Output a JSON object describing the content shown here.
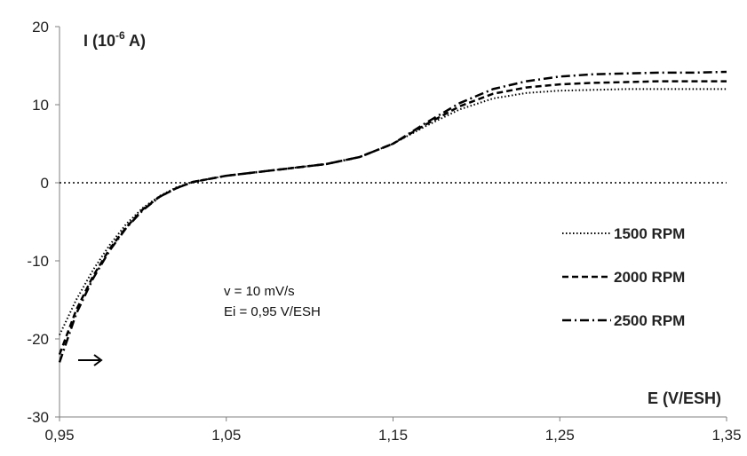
{
  "chart_data": {
    "type": "line",
    "title": "",
    "xlabel": "E (V/ESH)",
    "ylabel": "I (10",
    "ylabel_exponent": "-6",
    "ylabel_tail": " A)",
    "xlim": [
      0.95,
      1.35
    ],
    "ylim": [
      -30,
      20
    ],
    "x_ticks": [
      0.95,
      1.05,
      1.15,
      1.25,
      1.35
    ],
    "x_tick_labels": [
      "0,95",
      "1,05",
      "1,15",
      "1,25",
      "1,35"
    ],
    "y_ticks": [
      -30,
      -20,
      -10,
      0,
      10,
      20
    ],
    "y_tick_labels": [
      "-30",
      "-20",
      "-10",
      "0",
      "10",
      "20"
    ],
    "grid": false,
    "zero_line": true,
    "legend_position": "right",
    "annotations": [
      "v = 10 mV/s",
      "Ei = 0,95 V/ESH"
    ],
    "scan_direction_arrow": "right",
    "series": [
      {
        "name": "1500 RPM",
        "style": "dotted",
        "x": [
          0.95,
          0.96,
          0.97,
          0.98,
          0.99,
          1.0,
          1.01,
          1.02,
          1.03,
          1.04,
          1.05,
          1.07,
          1.09,
          1.11,
          1.13,
          1.15,
          1.17,
          1.19,
          1.21,
          1.23,
          1.25,
          1.27,
          1.29,
          1.31,
          1.33,
          1.35
        ],
        "values": [
          -19.5,
          -15.0,
          -11.2,
          -8.0,
          -5.3,
          -3.2,
          -1.7,
          -0.6,
          0.1,
          0.5,
          0.9,
          1.4,
          1.9,
          2.4,
          3.3,
          5.0,
          7.3,
          9.4,
          10.8,
          11.5,
          11.8,
          11.9,
          12.0,
          12.0,
          12.0,
          12.0
        ]
      },
      {
        "name": "2000 RPM",
        "style": "dashed",
        "x": [
          0.95,
          0.96,
          0.97,
          0.98,
          0.99,
          1.0,
          1.01,
          1.02,
          1.03,
          1.04,
          1.05,
          1.07,
          1.09,
          1.11,
          1.13,
          1.15,
          1.17,
          1.19,
          1.21,
          1.23,
          1.25,
          1.27,
          1.29,
          1.31,
          1.33,
          1.35
        ],
        "values": [
          -22.0,
          -16.3,
          -12.0,
          -8.5,
          -5.7,
          -3.4,
          -1.8,
          -0.7,
          0.1,
          0.5,
          0.9,
          1.4,
          1.9,
          2.4,
          3.3,
          5.0,
          7.5,
          9.8,
          11.4,
          12.2,
          12.6,
          12.8,
          12.9,
          13.0,
          13.0,
          13.0
        ]
      },
      {
        "name": "2500 RPM",
        "style": "dashdot",
        "x": [
          0.95,
          0.96,
          0.97,
          0.98,
          0.99,
          1.0,
          1.01,
          1.02,
          1.03,
          1.04,
          1.05,
          1.07,
          1.09,
          1.11,
          1.13,
          1.15,
          1.17,
          1.19,
          1.21,
          1.23,
          1.25,
          1.27,
          1.29,
          1.31,
          1.33,
          1.35
        ],
        "values": [
          -23.0,
          -16.8,
          -12.3,
          -8.7,
          -5.8,
          -3.5,
          -1.8,
          -0.7,
          0.1,
          0.5,
          0.9,
          1.4,
          1.9,
          2.4,
          3.3,
          5.0,
          7.7,
          10.2,
          12.0,
          13.0,
          13.6,
          13.9,
          14.0,
          14.1,
          14.1,
          14.2
        ]
      }
    ]
  }
}
